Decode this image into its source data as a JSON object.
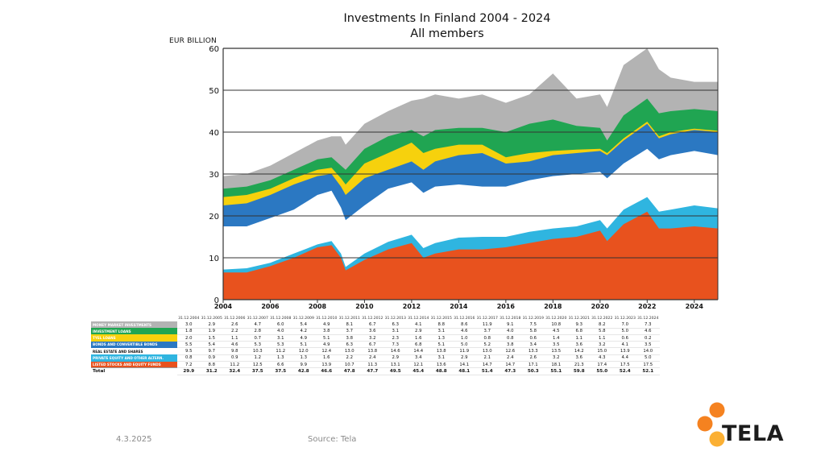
{
  "header": {
    "title": "Investments In Finland 2004 - 2024",
    "subtitle": "All members"
  },
  "footer": {
    "date": "4.3.2025",
    "source": "Source: Tela"
  },
  "logo": {
    "text": "TELA"
  },
  "colors": {
    "money_market": "#b3b3b3",
    "investment_loans": "#20a552",
    "tyel_loans": "#f6d10d",
    "bonds": "#2b78c2",
    "real_estate": "#ffffff",
    "private_equity": "#2fb5e0",
    "listed_stocks": "#e8521e",
    "logo_orange": "#f58220"
  },
  "chart_data": {
    "type": "area",
    "title": "Investments In Finland 2004 - 2024",
    "subtitle": "All members",
    "ylabel": "EUR BILLION",
    "xlabel": "",
    "ylim": [
      0,
      60
    ],
    "yticks": [
      "0",
      "10",
      "20",
      "30",
      "40",
      "50",
      "60"
    ],
    "xlim": [
      2004,
      2025
    ],
    "xticks": [
      "2004",
      "2006",
      "2008",
      "2010",
      "2012",
      "2014",
      "2016",
      "2018",
      "2020",
      "2022",
      "2024"
    ],
    "grid": "horizontal",
    "cumulative_series": [
      {
        "name": "LISTED STOCKS AND EQUITY FUNDS",
        "x": [
          2004,
          2005,
          2006,
          2007,
          2008,
          2008.6,
          2009,
          2009.2,
          2010,
          2011,
          2012,
          2012.5,
          2013,
          2014,
          2015,
          2016,
          2017,
          2018,
          2019,
          2020,
          2020.3,
          2021,
          2022,
          2022.5,
          2023,
          2024,
          2025
        ],
        "values": [
          6.5,
          6.5,
          8,
          10,
          12.5,
          13,
          10,
          7,
          9.5,
          12,
          13.5,
          10,
          11,
          12,
          12,
          12.5,
          13.5,
          14.5,
          15,
          16.5,
          14,
          18,
          21,
          17,
          17,
          17.5,
          17
        ]
      },
      {
        "name": "PRIVATE EQUITY AND OTHER ALTERN.",
        "x": [
          2004,
          2005,
          2006,
          2007,
          2008,
          2008.6,
          2009,
          2009.2,
          2010,
          2011,
          2012,
          2012.5,
          2013,
          2014,
          2015,
          2016,
          2017,
          2018,
          2019,
          2020,
          2020.3,
          2021,
          2022,
          2022.5,
          2023,
          2024,
          2025
        ],
        "values": [
          7.2,
          7.5,
          8.8,
          11,
          13.2,
          14,
          11,
          7.8,
          11,
          13.8,
          15.5,
          12.3,
          13.5,
          14.8,
          15,
          15,
          16.2,
          17,
          17.5,
          19,
          17,
          21.5,
          24.5,
          21,
          21.5,
          22.5,
          21.8
        ]
      },
      {
        "name": "REAL ESTATE AND SHARES",
        "x": [
          2004,
          2005,
          2006,
          2007,
          2008,
          2008.6,
          2009,
          2009.2,
          2010,
          2011,
          2012,
          2012.5,
          2013,
          2014,
          2015,
          2016,
          2017,
          2018,
          2019,
          2020,
          2020.3,
          2021,
          2022,
          2022.5,
          2023,
          2024,
          2025
        ],
        "values": [
          17.5,
          17.5,
          19.5,
          21.5,
          25,
          26,
          22,
          19,
          22.5,
          26.5,
          28,
          25.5,
          27,
          27.5,
          27,
          27,
          28.5,
          29.5,
          30,
          30.5,
          29,
          32.5,
          36,
          33.5,
          34.5,
          35.5,
          34.5
        ]
      },
      {
        "name": "BONDS AND CONVERTIBLE BONDS",
        "x": [
          2004,
          2005,
          2006,
          2007,
          2008,
          2008.6,
          2009,
          2009.2,
          2010,
          2011,
          2012,
          2012.5,
          2013,
          2014,
          2015,
          2016,
          2017,
          2018,
          2019,
          2020,
          2020.3,
          2021,
          2022,
          2022.5,
          2023,
          2024,
          2025
        ],
        "values": [
          22.5,
          23,
          25,
          27.5,
          29.5,
          30,
          27,
          25,
          29,
          31,
          33,
          31,
          33,
          34.5,
          35,
          32.5,
          33,
          34.5,
          35,
          35.5,
          34.5,
          38,
          42,
          38.5,
          39.5,
          40.5,
          40
        ]
      },
      {
        "name": "TYEL LOANS",
        "x": [
          2004,
          2005,
          2006,
          2007,
          2008,
          2008.6,
          2009,
          2009.2,
          2010,
          2011,
          2012,
          2012.5,
          2013,
          2014,
          2015,
          2016,
          2017,
          2018,
          2019,
          2020,
          2020.3,
          2021,
          2022,
          2022.5,
          2023,
          2024,
          2025
        ],
        "values": [
          24.5,
          25,
          26.5,
          29,
          31,
          31.5,
          29,
          27.5,
          32.5,
          35,
          37.5,
          35,
          36,
          37,
          37,
          34,
          35,
          35.5,
          35.8,
          36,
          35,
          38.5,
          42.5,
          39,
          40,
          40.8,
          40.3
        ]
      },
      {
        "name": "INVESTMENT LOANS",
        "x": [
          2004,
          2005,
          2006,
          2007,
          2008,
          2008.6,
          2009,
          2009.2,
          2010,
          2011,
          2012,
          2012.5,
          2013,
          2014,
          2015,
          2016,
          2017,
          2018,
          2019,
          2020,
          2020.3,
          2021,
          2022,
          2022.5,
          2023,
          2024,
          2025
        ],
        "values": [
          26.5,
          27,
          28.5,
          31,
          33.5,
          34,
          32,
          31,
          36,
          39,
          40.5,
          39,
          40.5,
          41,
          41,
          40,
          42,
          43,
          41.5,
          41,
          38,
          44,
          48,
          44.5,
          45,
          45.5,
          45
        ]
      },
      {
        "name": "MONEY MARKET INVESTMENTS",
        "x": [
          2004,
          2005,
          2006,
          2007,
          2008,
          2008.6,
          2009,
          2009.2,
          2010,
          2011,
          2012,
          2012.5,
          2013,
          2014,
          2015,
          2016,
          2017,
          2018,
          2019,
          2020,
          2020.3,
          2021,
          2022,
          2022.5,
          2023,
          2024,
          2025
        ],
        "values": [
          29.5,
          30,
          32,
          35,
          38,
          39,
          39,
          37,
          42,
          45,
          47.5,
          48,
          49,
          48,
          49,
          47,
          49,
          54,
          48,
          49,
          46,
          56,
          60,
          55,
          53,
          52,
          52
        ]
      }
    ],
    "table": {
      "dates": [
        "31.12.2004",
        "31.12.2005",
        "31.12.2006",
        "31.12.2007",
        "31.12.2008",
        "31.12.2009",
        "31.12.2010",
        "31.12.2011",
        "31.12.2012",
        "31.12.2013",
        "31.12.2014",
        "31.12.2015",
        "31.12.2016",
        "31.12.2017",
        "31.12.2018",
        "31.12.2019",
        "31.12.2020",
        "31.12.2021",
        "31.12.2022",
        "31.12.2023",
        "31.12.2024"
      ],
      "rows": [
        {
          "label": "MONEY MARKET INVESTMENTS",
          "color": "#b3b3b3",
          "values": [
            "3.0",
            "2.9",
            "2.6",
            "4.7",
            "6.0",
            "5.4",
            "4.9",
            "8.1",
            "6.7",
            "6.3",
            "4.1",
            "8.8",
            "8.6",
            "11.9",
            "9.1",
            "7.5",
            "10.8",
            "9.3",
            "8.2",
            "7.0",
            "7.3"
          ]
        },
        {
          "label": "INVESTMENT LOANS",
          "color": "#20a552",
          "values": [
            "1.8",
            "1.9",
            "2.2",
            "2.8",
            "4.0",
            "4.2",
            "3.8",
            "3.7",
            "3.6",
            "3.1",
            "2.9",
            "3.1",
            "4.6",
            "3.7",
            "4.0",
            "5.8",
            "4.5",
            "6.8",
            "5.8",
            "5.0",
            "4.6"
          ]
        },
        {
          "label": "TYEL LOANS",
          "color": "#f6d10d",
          "values": [
            "2.0",
            "1.5",
            "1.1",
            "0.7",
            "3.1",
            "4.9",
            "5.1",
            "3.8",
            "3.2",
            "2.3",
            "1.6",
            "1.3",
            "1.0",
            "0.8",
            "0.8",
            "0.6",
            "1.4",
            "1.1",
            "1.1",
            "0.6",
            "0.2"
          ]
        },
        {
          "label": "BONDS AND CONVERTIBLE BONDS",
          "color": "#2b78c2",
          "values": [
            "5.5",
            "5.4",
            "4.6",
            "5.3",
            "5.3",
            "5.1",
            "4.9",
            "6.3",
            "6.7",
            "7.3",
            "6.8",
            "5.1",
            "5.0",
            "5.2",
            "3.8",
            "3.4",
            "3.5",
            "3.6",
            "3.2",
            "4.1",
            "3.5"
          ]
        },
        {
          "label": "REAL ESTATE AND SHARES",
          "color": "#ffffff",
          "values": [
            "9.5",
            "9.7",
            "9.8",
            "10.3",
            "11.2",
            "12.0",
            "12.4",
            "13.0",
            "13.8",
            "14.6",
            "14.4",
            "13.8",
            "11.9",
            "13.0",
            "12.6",
            "13.3",
            "13.5",
            "14.2",
            "15.0",
            "13.9",
            "14.0"
          ]
        },
        {
          "label": "PRIVATE EQUITY AND OTHER ALTERN.",
          "color": "#2fb5e0",
          "values": [
            "0.8",
            "0.9",
            "0.9",
            "1.2",
            "1.3",
            "1.3",
            "1.6",
            "2.2",
            "2.4",
            "2.9",
            "3.4",
            "3.1",
            "2.9",
            "2.1",
            "2.4",
            "2.6",
            "3.2",
            "3.6",
            "4.3",
            "4.4",
            "5.0"
          ]
        },
        {
          "label": "LISTED STOCKS AND EQUITY FUNDS",
          "color": "#e8521e",
          "values": [
            "7.2",
            "8.8",
            "11.2",
            "12.5",
            "6.6",
            "9.9",
            "13.9",
            "10.7",
            "11.3",
            "13.1",
            "12.1",
            "13.6",
            "14.1",
            "14.7",
            "14.7",
            "17.1",
            "18.1",
            "21.3",
            "17.4",
            "17.5",
            "17.5"
          ]
        }
      ],
      "total_label": "Total",
      "totals": [
        "29.9",
        "31.2",
        "32.4",
        "37.5",
        "37.5",
        "42.8",
        "46.6",
        "47.8",
        "47.7",
        "49.5",
        "45.4",
        "48.8",
        "48.1",
        "51.4",
        "47.3",
        "50.3",
        "55.1",
        "59.8",
        "55.0",
        "52.4",
        "52.1"
      ]
    }
  }
}
